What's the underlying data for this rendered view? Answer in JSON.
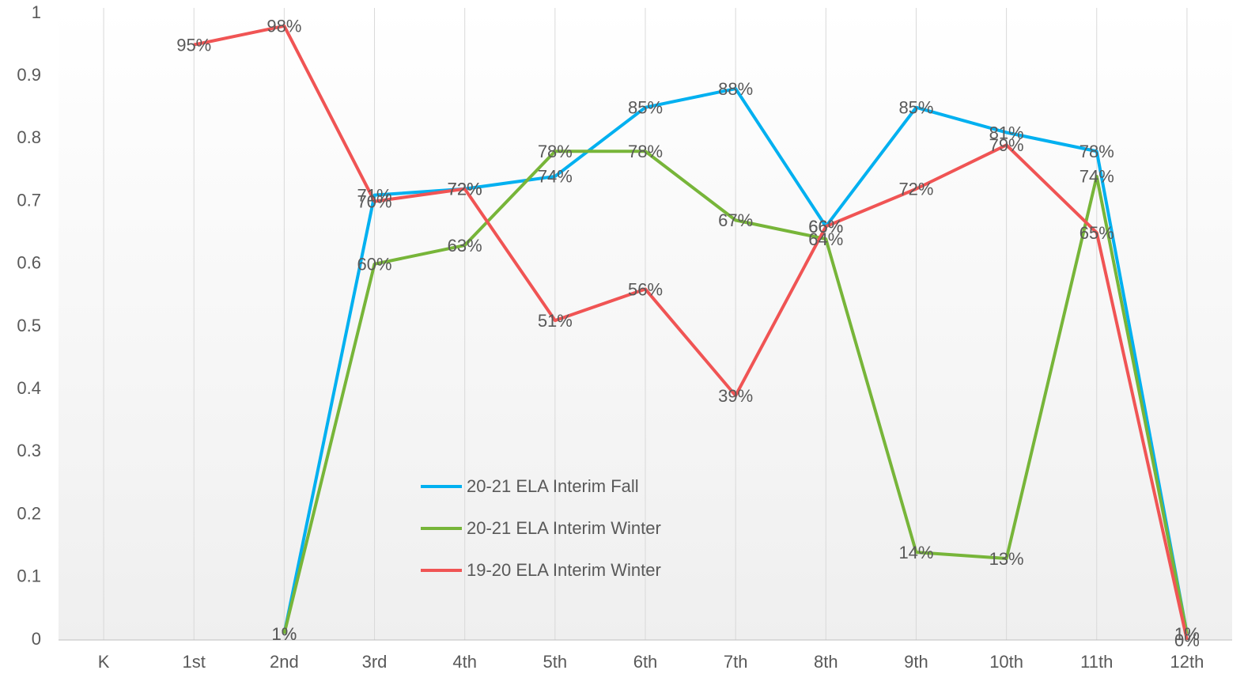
{
  "chart_data": {
    "type": "line",
    "categories": [
      "K",
      "1st",
      "2nd",
      "3rd",
      "4th",
      "5th",
      "6th",
      "7th",
      "8th",
      "9th",
      "10th",
      "11th",
      "12th"
    ],
    "ylim": [
      0,
      1
    ],
    "yticks": [
      0,
      0.1,
      0.2,
      0.3,
      0.4,
      0.5,
      0.6,
      0.7,
      0.8,
      0.9,
      1
    ],
    "grid": "vertical",
    "legend": "lower center",
    "series": [
      {
        "name": "20-21 ELA Interim Fall",
        "color": "#00b0f0",
        "values": [
          null,
          null,
          0.01,
          0.71,
          0.72,
          0.74,
          0.85,
          0.88,
          0.66,
          0.85,
          0.81,
          0.78,
          0.01
        ],
        "value_labels": [
          null,
          null,
          "1%",
          "71%",
          "72%",
          "74%",
          "85%",
          "88%",
          "66%",
          "85%",
          "81%",
          "78%",
          "1%"
        ]
      },
      {
        "name": "20-21 ELA Interim Winter",
        "color": "#77b539",
        "values": [
          null,
          null,
          0.01,
          0.6,
          0.63,
          0.78,
          0.78,
          0.67,
          0.64,
          0.14,
          0.13,
          0.74,
          0.01
        ],
        "value_labels": [
          null,
          null,
          "1%",
          "60%",
          "63%",
          "78%",
          "78%",
          "67%",
          "64%",
          "14%",
          "13%",
          "74%",
          "1%"
        ]
      },
      {
        "name": "19-20 ELA Interim Winter",
        "color": "#f05454",
        "values": [
          null,
          0.95,
          0.98,
          0.7,
          0.72,
          0.51,
          0.56,
          0.39,
          0.66,
          0.72,
          0.79,
          0.65,
          0
        ],
        "value_labels": [
          null,
          "95%",
          "98%",
          "70%",
          "72%",
          "51%",
          "56%",
          "39%",
          "66%",
          "72%",
          "79%",
          "65%",
          "0%"
        ]
      }
    ]
  }
}
